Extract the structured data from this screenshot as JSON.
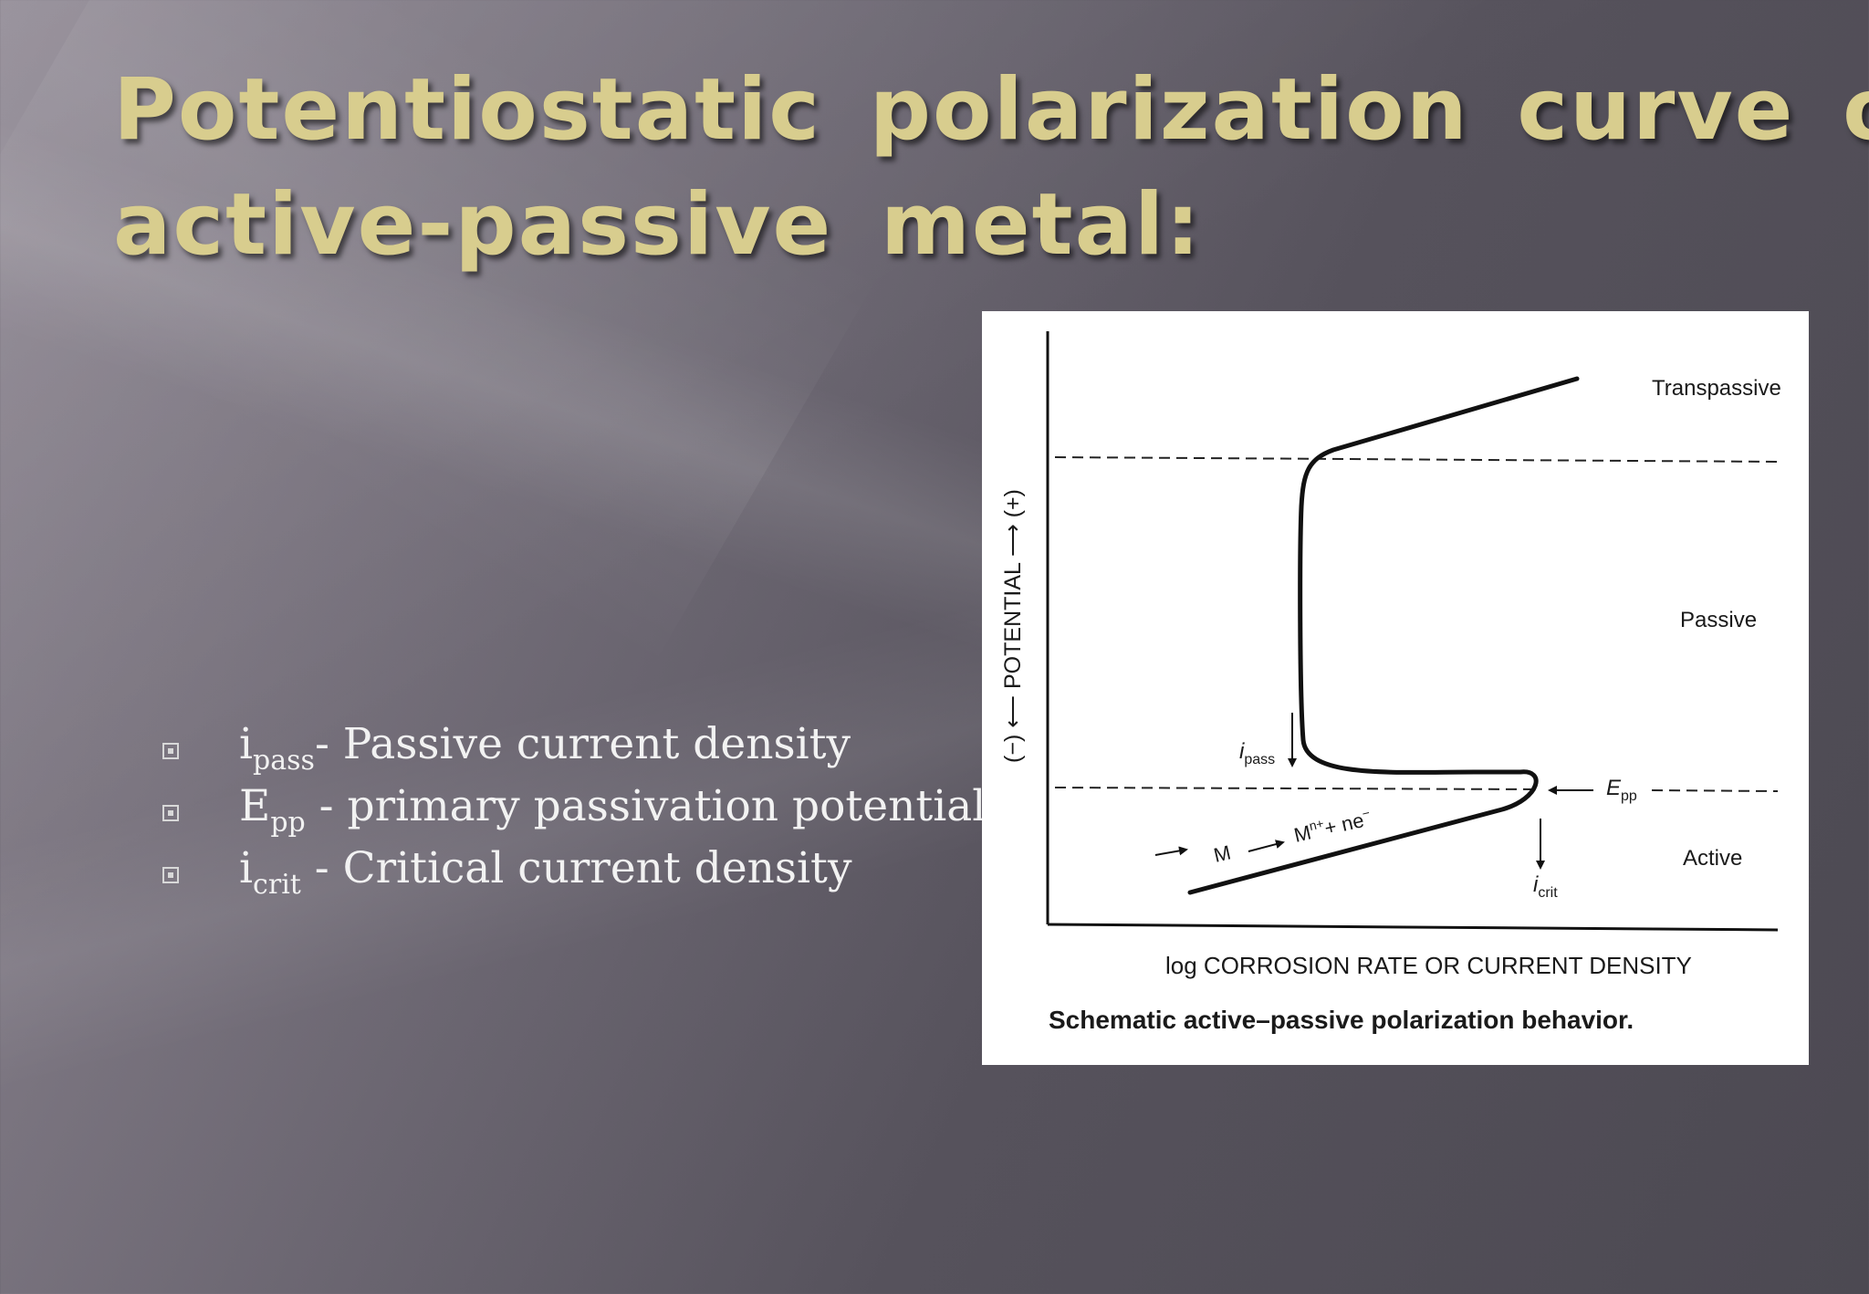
{
  "slide": {
    "title_line1": "Potentiostatic polarization curve of",
    "title_line2": "active-passive metal:",
    "bullets": [
      {
        "sym": "i",
        "sub": "pass",
        "rest": "- Passive current density"
      },
      {
        "sym": "E",
        "sub": "pp",
        "rest": " - primary passivation potential"
      },
      {
        "sym": "i",
        "sub": "crit",
        "rest": " - Critical current density"
      }
    ]
  },
  "figure": {
    "region_transpassive": "Transpassive",
    "region_passive": "Passive",
    "region_active": "Active",
    "y_axis_label": "(−) ⟵ POTENTIAL ⟶ (+)",
    "x_axis_label": "log CORROSION RATE OR CURRENT DENSITY",
    "caption": "Schematic active–passive polarization behavior.",
    "ipass_i": "i",
    "ipass_sub": "pass",
    "icrit_i": "i",
    "icrit_sub": "crit",
    "epp_e": "E",
    "epp_sub": "pp",
    "reaction_m": "M",
    "reaction_mn": "M",
    "reaction_sup": "n+",
    "reaction_plus": "+ ne",
    "reaction_esup": "−"
  }
}
